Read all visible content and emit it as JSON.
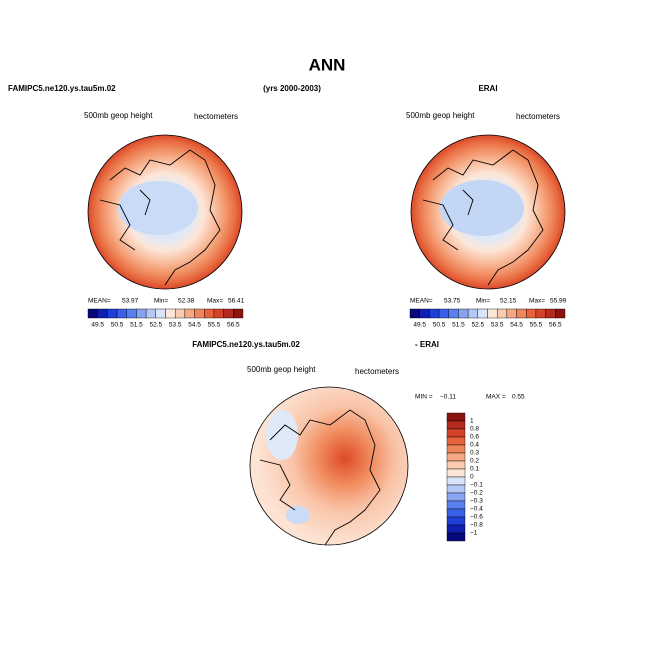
{
  "header": {
    "title": "ANN",
    "left": "FAMIPC5.ne120.ys.tau5m.02",
    "center": "(yrs 2000-2003)",
    "right": "ERAI"
  },
  "panels": [
    {
      "variable": "500mb geop height",
      "units": "hectometers",
      "stats": [
        "MEAN=",
        "53.97",
        "Min=",
        "52.38",
        "Max=",
        "56.41"
      ],
      "levels": [
        "49.5",
        "50.5",
        "51.5",
        "52.5",
        "53.5",
        "54.5",
        "55.5",
        "56.5"
      ]
    },
    {
      "variable": "500mb geop height",
      "units": "hectometers",
      "stats": [
        "MEAN=",
        "53.75",
        "Min=",
        "52.15",
        "Max=",
        "55.99"
      ],
      "levels": [
        "49.5",
        "50.5",
        "51.5",
        "52.5",
        "53.5",
        "54.5",
        "55.5",
        "56.5"
      ]
    }
  ],
  "diff": {
    "title_left": "FAMIPC5.ne120.ys.tau5m.02",
    "title_right": "- ERAI",
    "variable": "500mb geop height",
    "units": "hectometers",
    "stats": [
      "MIN =",
      "−0.11",
      "MAX =",
      "0.55"
    ],
    "levels": [
      "1",
      "0.8",
      "0.6",
      "0.4",
      "0.3",
      "0.2",
      "0.1",
      "0",
      "−0.1",
      "−0.2",
      "−0.3",
      "−0.4",
      "−0.6",
      "−0.8",
      "−1"
    ]
  }
}
